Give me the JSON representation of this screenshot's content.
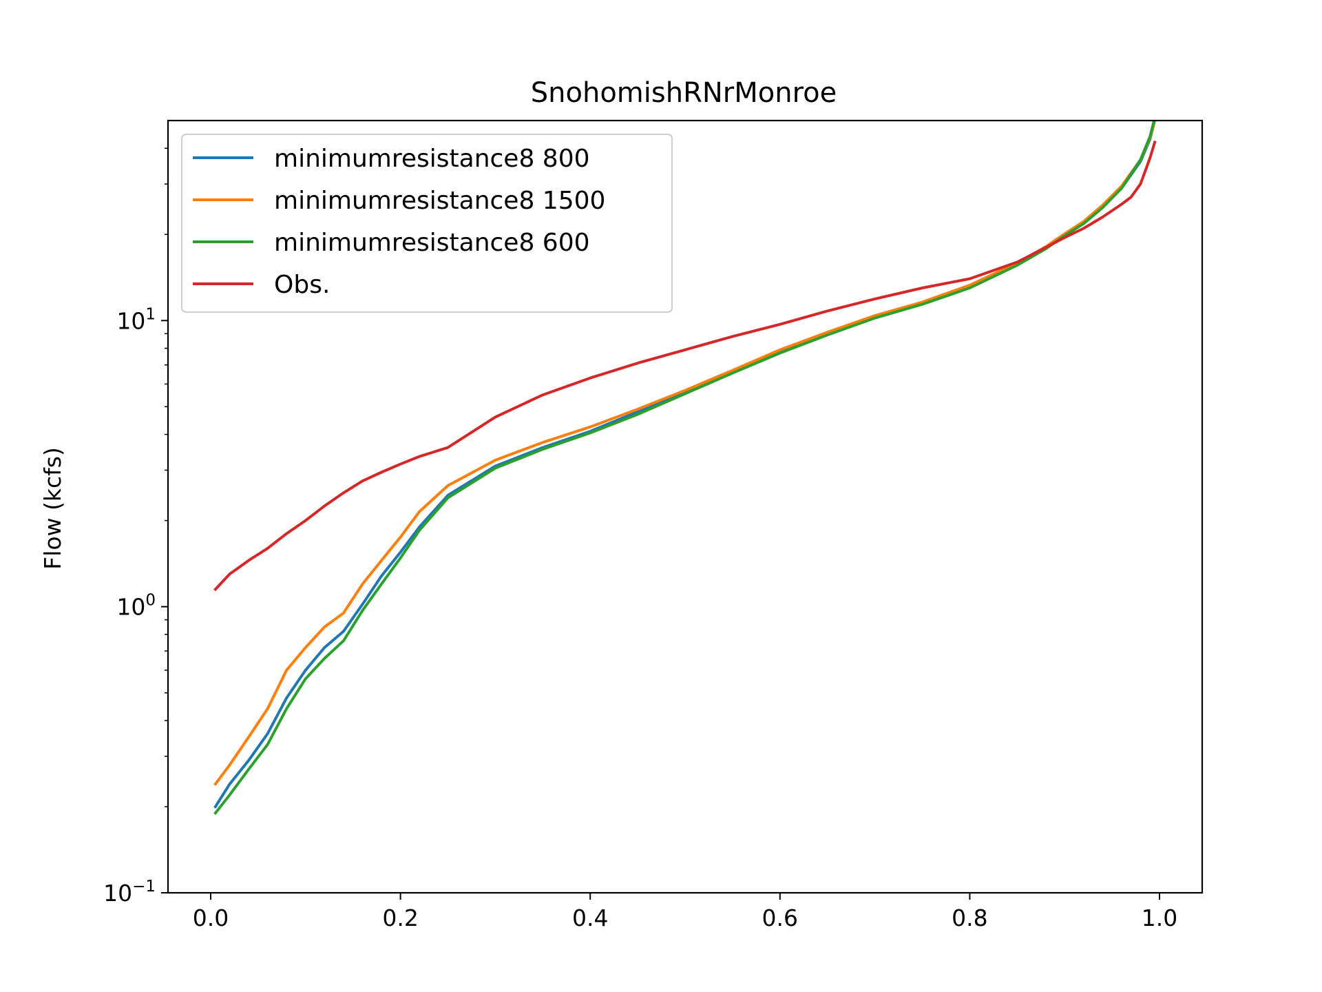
{
  "chart_data": {
    "type": "line",
    "title": "SnohomishRNrMonroe",
    "xlabel": "",
    "ylabel": "Flow (kcfs)",
    "xlim": [
      -0.045,
      1.045
    ],
    "ylim": [
      0.1,
      50
    ],
    "yscale": "log",
    "grid": false,
    "legend_placement": "upper-left",
    "x_ticks": [
      0.0,
      0.2,
      0.4,
      0.6,
      0.8,
      1.0
    ],
    "x_tick_labels": [
      "0.0",
      "0.2",
      "0.4",
      "0.6",
      "0.8",
      "1.0"
    ],
    "y_ticks": [
      {
        "value": 0.1,
        "base": "10",
        "exp": "−1"
      },
      {
        "value": 1,
        "base": "10",
        "exp": "0"
      },
      {
        "value": 10,
        "base": "10",
        "exp": "1"
      }
    ],
    "series": [
      {
        "name": "minimumresistance8 800",
        "color": "#1f77b4",
        "x": [
          0.005,
          0.02,
          0.04,
          0.06,
          0.08,
          0.1,
          0.12,
          0.14,
          0.16,
          0.18,
          0.2,
          0.22,
          0.25,
          0.3,
          0.35,
          0.4,
          0.45,
          0.5,
          0.55,
          0.6,
          0.65,
          0.7,
          0.75,
          0.8,
          0.85,
          0.88,
          0.9,
          0.92,
          0.94,
          0.96,
          0.98,
          0.99,
          0.995
        ],
        "y": [
          0.2,
          0.24,
          0.29,
          0.36,
          0.48,
          0.6,
          0.72,
          0.82,
          1.02,
          1.28,
          1.55,
          1.9,
          2.45,
          3.1,
          3.6,
          4.1,
          4.8,
          5.6,
          6.6,
          7.8,
          9.0,
          10.3,
          11.5,
          13.2,
          15.8,
          18.0,
          20.0,
          22.0,
          25.0,
          29.0,
          36.0,
          43.0,
          50.0
        ]
      },
      {
        "name": "minimumresistance8 1500",
        "color": "#ff7f0e",
        "x": [
          0.005,
          0.02,
          0.04,
          0.06,
          0.08,
          0.1,
          0.12,
          0.14,
          0.16,
          0.18,
          0.2,
          0.22,
          0.25,
          0.3,
          0.35,
          0.4,
          0.45,
          0.5,
          0.55,
          0.6,
          0.65,
          0.7,
          0.75,
          0.8,
          0.85,
          0.88,
          0.9,
          0.92,
          0.94,
          0.96,
          0.98,
          0.99,
          0.995
        ],
        "y": [
          0.24,
          0.28,
          0.35,
          0.44,
          0.6,
          0.72,
          0.85,
          0.95,
          1.2,
          1.45,
          1.75,
          2.15,
          2.65,
          3.25,
          3.75,
          4.25,
          4.9,
          5.7,
          6.7,
          7.9,
          9.1,
          10.4,
          11.6,
          13.3,
          15.9,
          18.1,
          20.1,
          22.2,
          25.3,
          29.5,
          36.5,
          43.5,
          50.0
        ]
      },
      {
        "name": "minimumresistance8 600",
        "color": "#2ca02c",
        "x": [
          0.005,
          0.02,
          0.04,
          0.06,
          0.08,
          0.1,
          0.12,
          0.14,
          0.16,
          0.18,
          0.2,
          0.22,
          0.25,
          0.3,
          0.35,
          0.4,
          0.45,
          0.5,
          0.55,
          0.6,
          0.65,
          0.7,
          0.75,
          0.8,
          0.85,
          0.88,
          0.9,
          0.92,
          0.94,
          0.96,
          0.98,
          0.99,
          0.995
        ],
        "y": [
          0.19,
          0.22,
          0.27,
          0.33,
          0.44,
          0.56,
          0.66,
          0.76,
          0.97,
          1.2,
          1.48,
          1.85,
          2.4,
          3.05,
          3.55,
          4.05,
          4.7,
          5.55,
          6.55,
          7.7,
          8.9,
          10.2,
          11.4,
          13.0,
          15.6,
          17.8,
          19.8,
          21.8,
          24.8,
          29.0,
          36.5,
          44.0,
          51.0
        ]
      },
      {
        "name": "Obs.",
        "color": "#d62728",
        "x": [
          0.005,
          0.02,
          0.04,
          0.06,
          0.08,
          0.1,
          0.12,
          0.14,
          0.16,
          0.18,
          0.2,
          0.22,
          0.25,
          0.3,
          0.35,
          0.4,
          0.45,
          0.5,
          0.55,
          0.6,
          0.65,
          0.7,
          0.75,
          0.8,
          0.85,
          0.88,
          0.9,
          0.92,
          0.94,
          0.96,
          0.97,
          0.98,
          0.99,
          0.995
        ],
        "y": [
          1.15,
          1.3,
          1.45,
          1.6,
          1.8,
          2.0,
          2.25,
          2.5,
          2.75,
          2.95,
          3.15,
          3.35,
          3.6,
          4.6,
          5.5,
          6.3,
          7.1,
          7.9,
          8.8,
          9.7,
          10.8,
          11.9,
          13.0,
          14.0,
          16.0,
          18.0,
          19.5,
          21.0,
          23.0,
          25.5,
          27.0,
          30.0,
          37.0,
          42.0
        ]
      }
    ]
  }
}
